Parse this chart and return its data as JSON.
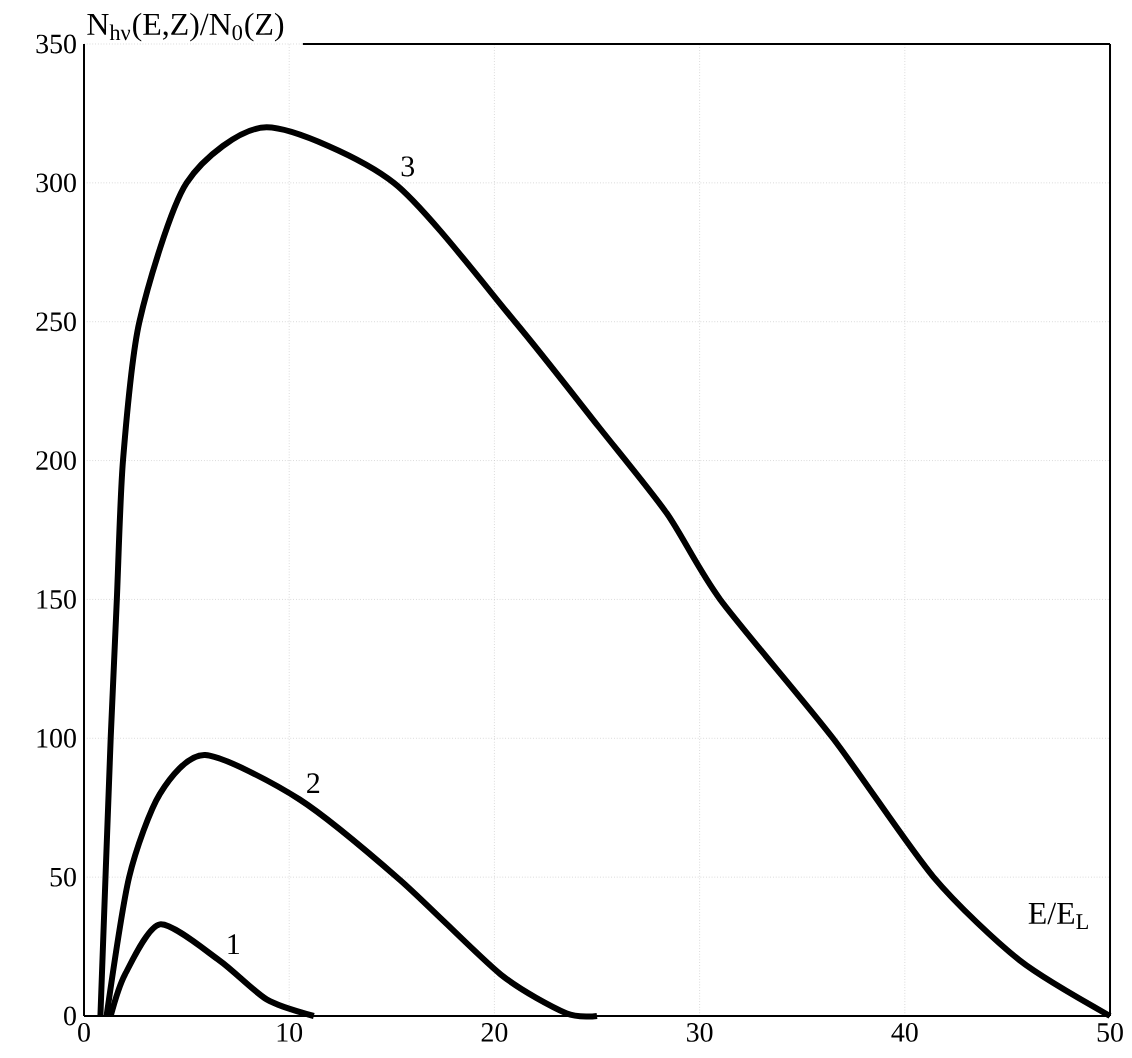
{
  "chart_data": {
    "type": "line",
    "xlabel": "E/E$_{L}$",
    "ylabel": "N$_{hν}$(E,Z)/N$_{0}$(Z)",
    "xlim": [
      0,
      50
    ],
    "ylim": [
      0,
      350
    ],
    "xticks": [
      0,
      10,
      20,
      30,
      40,
      50
    ],
    "yticks": [
      0,
      50,
      100,
      150,
      200,
      250,
      300,
      350
    ],
    "grid": true,
    "line_style": "solid",
    "marker": "none",
    "series": [
      {
        "name": "1",
        "color": "#000000",
        "x": [
          1.3,
          2.0,
          3.7,
          6.6,
          8.9,
          11.2
        ],
        "values": [
          0,
          15,
          33,
          20,
          6,
          0
        ]
      },
      {
        "name": "2",
        "color": "#000000",
        "x": [
          1.1,
          2.2,
          3.7,
          5.9,
          10.5,
          15.4,
          20.3,
          23.5,
          25
        ],
        "values": [
          0,
          50,
          80,
          94,
          78,
          49,
          15,
          1,
          0
        ]
      },
      {
        "name": "3",
        "color": "#000000",
        "x": [
          0.8,
          1.3,
          1.6,
          1.9,
          2.7,
          5.0,
          8.9,
          15.1,
          21,
          25.1,
          28.4,
          31,
          36.5,
          41.4,
          45.6,
          50
        ],
        "values": [
          0,
          100,
          150,
          200,
          250,
          300,
          320,
          300,
          250,
          212,
          181,
          150,
          100,
          50,
          20,
          0
        ]
      }
    ]
  }
}
